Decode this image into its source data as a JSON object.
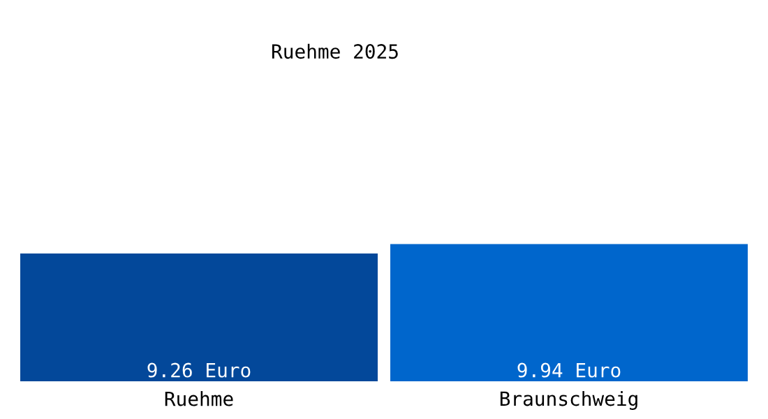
{
  "chart_data": {
    "type": "bar",
    "title": "Ruehme 2025",
    "categories": [
      "Ruehme",
      "Braunschweig"
    ],
    "values": [
      9.26,
      9.94
    ],
    "colors": [
      "#03489a",
      "#0066cc"
    ],
    "value_labels": [
      "9.26 Euro",
      "9.94 Euro"
    ],
    "grid": false,
    "legend": false
  }
}
